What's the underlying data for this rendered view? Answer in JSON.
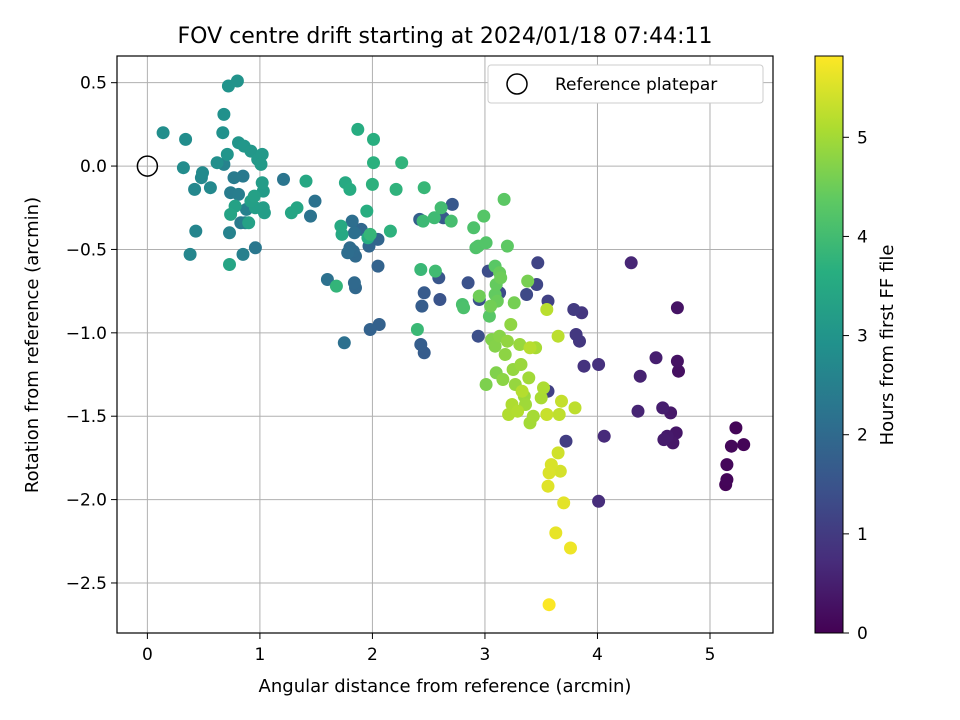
{
  "chart_data": {
    "type": "scatter",
    "title": "FOV centre drift starting at 2024/01/18 07:44:11",
    "xlabel": "Angular distance from reference (arcmin)",
    "ylabel": "Rotation from reference (arcmin)",
    "xlim": [
      -0.27,
      5.56
    ],
    "ylim": [
      -2.8,
      0.66
    ],
    "x_ticks": [
      0,
      1,
      2,
      3,
      4,
      5
    ],
    "y_ticks": [
      0.5,
      0.0,
      -0.5,
      -1.0,
      -1.5,
      -2.0,
      -2.5
    ],
    "grid": true,
    "legend": {
      "position": "top-right",
      "entries": [
        "Reference platepar"
      ]
    },
    "reference_point": {
      "x": 0.0,
      "y": 0.0
    },
    "colorbar": {
      "label": "Hours from first FF file",
      "range": [
        0,
        5.82
      ],
      "ticks": [
        0,
        1,
        2,
        3,
        4,
        5
      ],
      "colormap": "viridis"
    },
    "points": [
      [
        5.3,
        -1.67,
        0.05
      ],
      [
        5.23,
        -1.57,
        0.08
      ],
      [
        5.19,
        -1.68,
        0.1
      ],
      [
        5.15,
        -1.79,
        0.12
      ],
      [
        5.14,
        -1.91,
        0.06
      ],
      [
        5.15,
        -1.88,
        0.09
      ],
      [
        4.72,
        -1.23,
        0.25
      ],
      [
        4.71,
        -1.17,
        0.28
      ],
      [
        4.71,
        -0.85,
        0.3
      ],
      [
        4.7,
        -1.6,
        0.35
      ],
      [
        4.67,
        -1.66,
        0.38
      ],
      [
        4.65,
        -1.48,
        0.4
      ],
      [
        4.62,
        -1.62,
        0.42
      ],
      [
        4.59,
        -1.64,
        0.45
      ],
      [
        4.58,
        -1.45,
        0.48
      ],
      [
        4.52,
        -1.15,
        0.5
      ],
      [
        4.38,
        -1.26,
        0.55
      ],
      [
        4.36,
        -1.47,
        0.58
      ],
      [
        4.3,
        -0.58,
        0.62
      ],
      [
        4.06,
        -1.62,
        0.7
      ],
      [
        4.01,
        -2.01,
        0.75
      ],
      [
        4.01,
        -1.19,
        0.8
      ],
      [
        3.88,
        -1.2,
        0.85
      ],
      [
        3.86,
        -0.88,
        0.9
      ],
      [
        3.84,
        -1.05,
        0.92
      ],
      [
        3.81,
        -1.01,
        0.95
      ],
      [
        3.79,
        -0.86,
        1.0
      ],
      [
        3.72,
        -1.65,
        1.05
      ],
      [
        3.56,
        -1.35,
        1.1
      ],
      [
        3.56,
        -0.81,
        1.12
      ],
      [
        3.47,
        -0.58,
        1.18
      ],
      [
        3.46,
        -0.71,
        1.22
      ],
      [
        3.37,
        -0.77,
        1.28
      ],
      [
        3.13,
        -0.76,
        1.32
      ],
      [
        3.03,
        -0.63,
        1.35
      ],
      [
        2.94,
        -1.02,
        1.4
      ],
      [
        2.95,
        -0.8,
        1.43
      ],
      [
        2.85,
        -0.7,
        1.46
      ],
      [
        2.6,
        -0.8,
        1.5
      ],
      [
        2.59,
        -0.67,
        1.55
      ],
      [
        2.71,
        -0.23,
        1.6
      ],
      [
        2.63,
        -0.31,
        1.62
      ],
      [
        2.46,
        -0.76,
        1.65
      ],
      [
        2.46,
        -1.12,
        1.68
      ],
      [
        2.44,
        -0.84,
        1.7
      ],
      [
        2.43,
        -1.07,
        1.72
      ],
      [
        2.42,
        -0.32,
        1.75
      ],
      [
        2.06,
        -0.95,
        1.8
      ],
      [
        1.98,
        -0.98,
        1.82
      ],
      [
        2.05,
        -0.6,
        1.85
      ],
      [
        2.05,
        -0.44,
        1.88
      ],
      [
        1.99,
        -0.44,
        1.9
      ],
      [
        1.97,
        -0.48,
        1.92
      ],
      [
        1.9,
        -0.38,
        1.94
      ],
      [
        1.85,
        -0.73,
        1.96
      ],
      [
        1.84,
        -0.7,
        1.98
      ],
      [
        1.85,
        -0.54,
        2.0
      ],
      [
        1.83,
        -0.51,
        2.02
      ],
      [
        1.8,
        -0.49,
        2.05
      ],
      [
        1.78,
        -0.52,
        2.07
      ],
      [
        1.82,
        -0.33,
        2.09
      ],
      [
        1.84,
        -0.4,
        2.11
      ],
      [
        1.75,
        -1.06,
        2.13
      ],
      [
        1.6,
        -0.68,
        2.15
      ],
      [
        1.49,
        -0.21,
        2.18
      ],
      [
        1.45,
        -0.3,
        2.2
      ],
      [
        1.21,
        -0.08,
        2.25
      ],
      [
        0.96,
        -0.49,
        2.3
      ],
      [
        0.85,
        -0.06,
        2.35
      ],
      [
        0.83,
        -0.34,
        2.38
      ],
      [
        0.77,
        -0.07,
        2.4
      ],
      [
        0.74,
        -0.16,
        2.42
      ],
      [
        0.81,
        -0.17,
        2.45
      ],
      [
        0.87,
        -0.34,
        2.47
      ],
      [
        0.88,
        -0.26,
        2.5
      ],
      [
        0.85,
        -0.53,
        2.52
      ],
      [
        0.73,
        -0.4,
        2.55
      ],
      [
        0.68,
        0.01,
        2.58
      ],
      [
        0.43,
        -0.39,
        2.62
      ],
      [
        0.38,
        -0.53,
        2.65
      ],
      [
        0.42,
        -0.14,
        2.68
      ],
      [
        0.48,
        -0.07,
        2.7
      ],
      [
        0.56,
        -0.13,
        2.72
      ],
      [
        0.49,
        -0.04,
        2.75
      ],
      [
        0.32,
        -0.01,
        2.8
      ],
      [
        0.34,
        0.16,
        2.82
      ],
      [
        0.14,
        0.2,
        2.85
      ],
      [
        0.62,
        0.02,
        2.87
      ],
      [
        0.67,
        0.2,
        2.9
      ],
      [
        0.68,
        0.31,
        2.92
      ],
      [
        0.72,
        0.48,
        2.95
      ],
      [
        0.8,
        0.51,
        2.97
      ],
      [
        0.71,
        0.07,
        3.0
      ],
      [
        0.81,
        0.14,
        3.02
      ],
      [
        0.86,
        0.12,
        3.05
      ],
      [
        0.92,
        0.09,
        3.07
      ],
      [
        0.98,
        0.04,
        3.1
      ],
      [
        1.02,
        0.07,
        3.12
      ],
      [
        1.01,
        0.01,
        3.14
      ],
      [
        1.03,
        -0.15,
        3.16
      ],
      [
        1.02,
        -0.1,
        3.18
      ],
      [
        1.03,
        -0.25,
        3.2
      ],
      [
        1.04,
        -0.28,
        3.22
      ],
      [
        0.96,
        -0.25,
        3.24
      ],
      [
        0.92,
        -0.21,
        3.26
      ],
      [
        0.95,
        -0.18,
        3.28
      ],
      [
        0.9,
        -0.34,
        3.3
      ],
      [
        0.78,
        -0.24,
        3.32
      ],
      [
        0.74,
        -0.29,
        3.35
      ],
      [
        0.73,
        -0.59,
        3.38
      ],
      [
        1.28,
        -0.28,
        3.4
      ],
      [
        1.33,
        -0.25,
        3.42
      ],
      [
        1.41,
        -0.09,
        3.45
      ],
      [
        1.73,
        -0.41,
        3.48
      ],
      [
        1.72,
        -0.36,
        3.5
      ],
      [
        1.76,
        -0.1,
        3.52
      ],
      [
        1.8,
        -0.14,
        3.55
      ],
      [
        1.87,
        0.22,
        3.58
      ],
      [
        1.96,
        -0.43,
        3.6
      ],
      [
        1.95,
        -0.27,
        3.62
      ],
      [
        2.01,
        0.16,
        3.65
      ],
      [
        2.01,
        0.02,
        3.68
      ],
      [
        2.0,
        -0.11,
        3.7
      ],
      [
        2.16,
        -0.39,
        3.72
      ],
      [
        2.21,
        -0.14,
        3.74
      ],
      [
        2.26,
        0.02,
        3.76
      ],
      [
        1.68,
        -0.72,
        3.8
      ],
      [
        1.98,
        -0.41,
        3.82
      ],
      [
        2.46,
        -0.13,
        3.85
      ],
      [
        2.43,
        -0.62,
        3.88
      ],
      [
        2.4,
        -0.98,
        3.9
      ],
      [
        2.45,
        -0.33,
        3.92
      ],
      [
        2.55,
        -0.31,
        3.95
      ],
      [
        2.56,
        -0.63,
        3.98
      ],
      [
        2.61,
        -0.25,
        4.0
      ],
      [
        2.7,
        -0.33,
        4.05
      ],
      [
        2.8,
        -0.83,
        4.1
      ],
      [
        2.81,
        -0.85,
        4.12
      ],
      [
        2.9,
        -0.37,
        4.15
      ],
      [
        2.92,
        -0.49,
        4.18
      ],
      [
        2.94,
        -0.48,
        4.2
      ],
      [
        3.01,
        -0.46,
        4.22
      ],
      [
        2.99,
        -0.3,
        4.25
      ],
      [
        3.04,
        -0.9,
        4.28
      ],
      [
        3.09,
        -0.6,
        4.3
      ],
      [
        3.17,
        -0.2,
        4.32
      ],
      [
        3.2,
        -0.48,
        4.35
      ],
      [
        3.09,
        -0.77,
        4.4
      ],
      [
        3.1,
        -0.71,
        4.42
      ],
      [
        3.13,
        -0.64,
        4.45
      ],
      [
        3.11,
        -0.81,
        4.48
      ],
      [
        3.14,
        -0.67,
        4.5
      ],
      [
        2.95,
        -0.78,
        4.52
      ],
      [
        3.05,
        -0.84,
        4.55
      ],
      [
        3.26,
        -0.82,
        4.58
      ],
      [
        3.38,
        -0.69,
        4.6
      ],
      [
        3.01,
        -1.31,
        4.65
      ],
      [
        3.1,
        -1.24,
        4.68
      ],
      [
        3.06,
        -1.04,
        4.7
      ],
      [
        3.09,
        -1.08,
        4.72
      ],
      [
        3.13,
        -1.02,
        4.75
      ],
      [
        3.16,
        -1.28,
        4.78
      ],
      [
        3.18,
        -1.13,
        4.8
      ],
      [
        3.23,
        -0.95,
        4.82
      ],
      [
        3.2,
        -1.05,
        4.84
      ],
      [
        3.25,
        -1.22,
        4.86
      ],
      [
        3.27,
        -1.31,
        4.88
      ],
      [
        3.31,
        -1.07,
        4.9
      ],
      [
        3.32,
        -1.19,
        4.92
      ],
      [
        3.35,
        -1.38,
        4.94
      ],
      [
        3.36,
        -1.43,
        4.96
      ],
      [
        3.39,
        -1.27,
        4.98
      ],
      [
        3.4,
        -1.54,
        5.0
      ],
      [
        3.43,
        -1.5,
        5.02
      ],
      [
        3.45,
        -1.09,
        5.04
      ],
      [
        3.5,
        -1.39,
        5.06
      ],
      [
        3.52,
        -1.33,
        5.08
      ],
      [
        3.24,
        -1.43,
        5.1
      ],
      [
        3.21,
        -1.49,
        5.12
      ],
      [
        3.29,
        -1.47,
        5.14
      ],
      [
        3.33,
        -1.35,
        5.16
      ],
      [
        3.4,
        -1.09,
        5.18
      ],
      [
        3.55,
        -0.86,
        5.2
      ],
      [
        3.65,
        -1.02,
        5.22
      ],
      [
        3.8,
        -1.45,
        5.24
      ],
      [
        3.66,
        -1.49,
        5.26
      ],
      [
        3.68,
        -1.41,
        5.3
      ],
      [
        3.55,
        -1.49,
        5.33
      ],
      [
        3.65,
        -1.72,
        5.4
      ],
      [
        3.67,
        -1.83,
        5.45
      ],
      [
        3.59,
        -1.79,
        5.48
      ],
      [
        3.57,
        -1.84,
        5.5
      ],
      [
        3.56,
        -1.92,
        5.55
      ],
      [
        3.7,
        -2.02,
        5.58
      ],
      [
        3.63,
        -2.2,
        5.62
      ],
      [
        3.76,
        -2.29,
        5.68
      ],
      [
        3.57,
        -2.63,
        5.8
      ]
    ]
  }
}
